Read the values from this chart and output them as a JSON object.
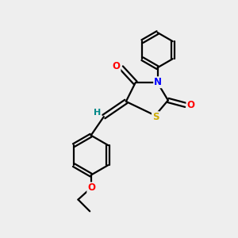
{
  "background_color": "#eeeeee",
  "bond_color": "#000000",
  "atom_colors": {
    "N": "#0000ff",
    "O": "#ff0000",
    "S": "#ccaa00",
    "H": "#008888",
    "C": "#000000"
  },
  "figsize": [
    3.0,
    3.0
  ],
  "dpi": 100
}
